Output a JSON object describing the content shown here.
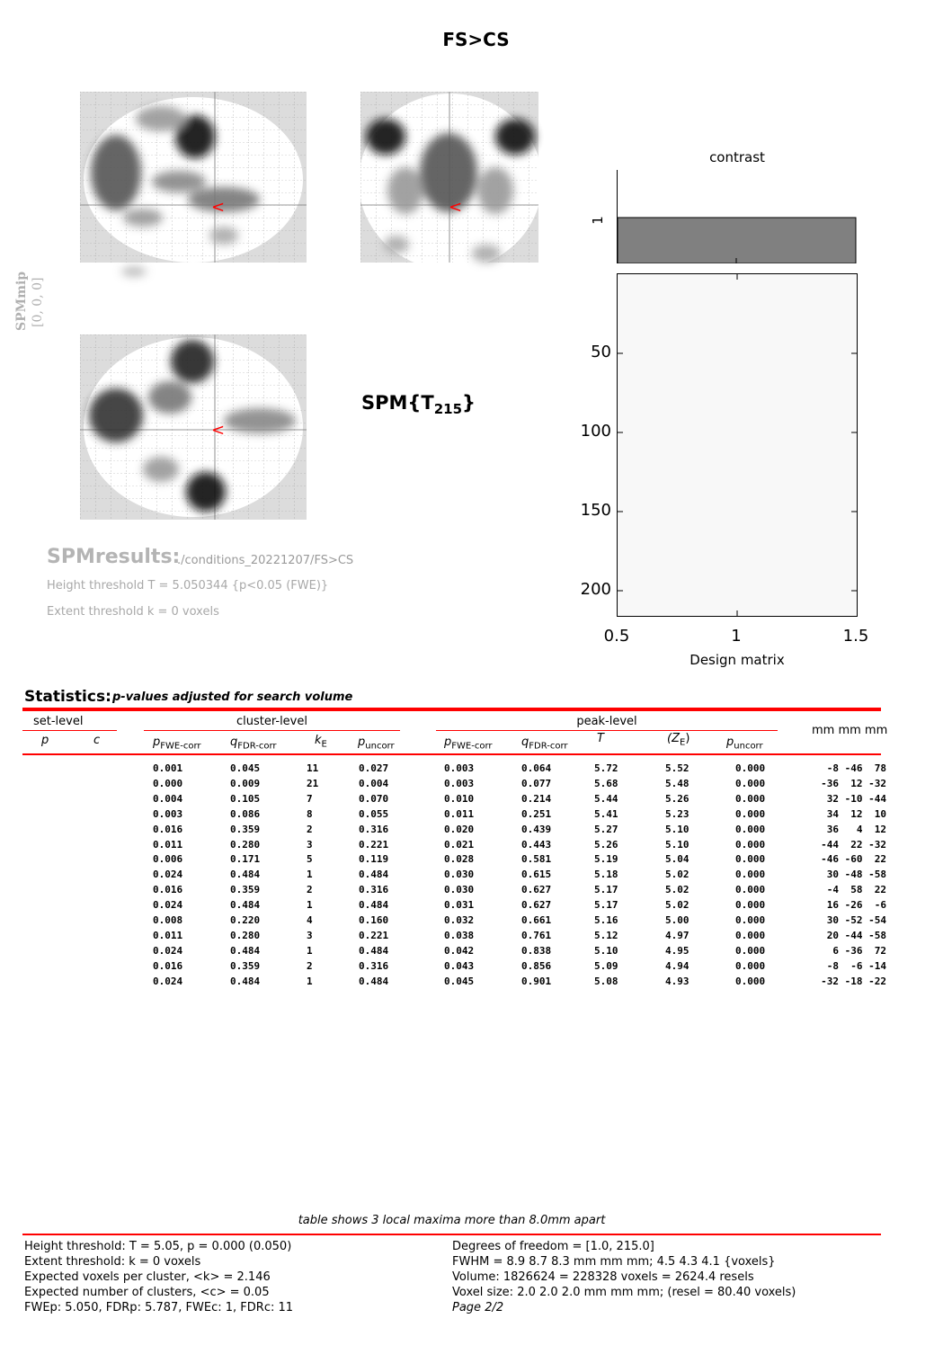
{
  "title": "FS>CS",
  "glass_brain": {
    "label": "SPMmip",
    "coords": "[0, 0, 0]",
    "stat_label": "SPM{T",
    "stat_df": "215",
    "stat_close": "}",
    "cursor_marker": "<"
  },
  "design": {
    "contrast_label": "contrast",
    "contrast_tick": "1",
    "y_ticks": [
      "50",
      "100",
      "150",
      "200"
    ],
    "x_ticks": [
      "0.5",
      "1",
      "1.5"
    ],
    "xlabel": "Design matrix"
  },
  "results": {
    "title": "SPMresults:",
    "path": "./conditions_20221207/FS>CS",
    "height_threshold": "Height threshold T = 5.050344  {p<0.05 (FWE)}",
    "extent_threshold": "Extent threshold k = 0 voxels"
  },
  "statistics": {
    "title": "Statistics:",
    "subtitle": "p-values adjusted for search volume",
    "groups": {
      "set": "set-level",
      "cluster": "cluster-level",
      "peak": "peak-level",
      "coords": "mm mm mm"
    },
    "columns": {
      "set_p": "p",
      "set_c": "c",
      "p_fwe": "p",
      "p_fwe_sub": "FWE-corr",
      "q_fdr": "q",
      "q_fdr_sub": "FDR-corr",
      "ke": "k",
      "ke_sub": "E",
      "p_unc": "p",
      "p_unc_sub": "uncorr",
      "pk_fwe": "p",
      "pk_fwe_sub": "FWE-corr",
      "pk_fdr": "q",
      "pk_fdr_sub": "FDR-corr",
      "t": "T",
      "ze": "(Z",
      "ze_sub": "E",
      "ze_close": ")",
      "pk_unc": "p",
      "pk_unc_sub": "uncorr"
    },
    "rows": [
      [
        "0.001",
        "0.045",
        "11",
        "0.027",
        "0.003",
        "0.064",
        "5.72",
        "5.52",
        "0.000",
        "-8 -46  78"
      ],
      [
        "0.000",
        "0.009",
        "21",
        "0.004",
        "0.003",
        "0.077",
        "5.68",
        "5.48",
        "0.000",
        "-36  12 -32"
      ],
      [
        "0.004",
        "0.105",
        "7",
        "0.070",
        "0.010",
        "0.214",
        "5.44",
        "5.26",
        "0.000",
        "32 -10 -44"
      ],
      [
        "0.003",
        "0.086",
        "8",
        "0.055",
        "0.011",
        "0.251",
        "5.41",
        "5.23",
        "0.000",
        "34  12  10"
      ],
      [
        "0.016",
        "0.359",
        "2",
        "0.316",
        "0.020",
        "0.439",
        "5.27",
        "5.10",
        "0.000",
        "36   4  12"
      ],
      [
        "0.011",
        "0.280",
        "3",
        "0.221",
        "0.021",
        "0.443",
        "5.26",
        "5.10",
        "0.000",
        "-44  22 -32"
      ],
      [
        "0.006",
        "0.171",
        "5",
        "0.119",
        "0.028",
        "0.581",
        "5.19",
        "5.04",
        "0.000",
        "-46 -60  22"
      ],
      [
        "0.024",
        "0.484",
        "1",
        "0.484",
        "0.030",
        "0.615",
        "5.18",
        "5.02",
        "0.000",
        "30 -48 -58"
      ],
      [
        "0.016",
        "0.359",
        "2",
        "0.316",
        "0.030",
        "0.627",
        "5.17",
        "5.02",
        "0.000",
        "-4  58  22"
      ],
      [
        "0.024",
        "0.484",
        "1",
        "0.484",
        "0.031",
        "0.627",
        "5.17",
        "5.02",
        "0.000",
        "16 -26  -6"
      ],
      [
        "0.008",
        "0.220",
        "4",
        "0.160",
        "0.032",
        "0.661",
        "5.16",
        "5.00",
        "0.000",
        "30 -52 -54"
      ],
      [
        "0.011",
        "0.280",
        "3",
        "0.221",
        "0.038",
        "0.761",
        "5.12",
        "4.97",
        "0.000",
        "20 -44 -58"
      ],
      [
        "0.024",
        "0.484",
        "1",
        "0.484",
        "0.042",
        "0.838",
        "5.10",
        "4.95",
        "0.000",
        "6 -36  72"
      ],
      [
        "0.016",
        "0.359",
        "2",
        "0.316",
        "0.043",
        "0.856",
        "5.09",
        "4.94",
        "0.000",
        "-8  -6 -14"
      ],
      [
        "0.024",
        "0.484",
        "1",
        "0.484",
        "0.045",
        "0.901",
        "5.08",
        "4.93",
        "0.000",
        "-32 -18 -22"
      ]
    ]
  },
  "footer": {
    "note": "table shows 3 local maxima more than 8.0mm apart",
    "left": [
      "Height threshold: T = 5.05, p = 0.000 (0.050)",
      "Extent threshold: k = 0 voxels",
      "Expected voxels per cluster, <k> = 2.146",
      "Expected number of clusters, <c> = 0.05",
      "FWEp: 5.050, FDRp: 5.787, FWEc: 1, FDRc: 11"
    ],
    "right": [
      "Degrees of freedom = [1.0, 215.0]",
      "FWHM = 8.9 8.7 8.3 mm mm mm; 4.5 4.3 4.1 {voxels}",
      "Volume: 1826624 = 228328 voxels = 2624.4 resels",
      "Voxel size: 2.0 2.0 2.0 mm mm mm; (resel = 80.40 voxels)",
      "Page 2/2"
    ]
  },
  "colors": {
    "accent_red": "#ff0000",
    "contrast_bar": "#808080",
    "matrix_bg": "#f8f8f8"
  }
}
